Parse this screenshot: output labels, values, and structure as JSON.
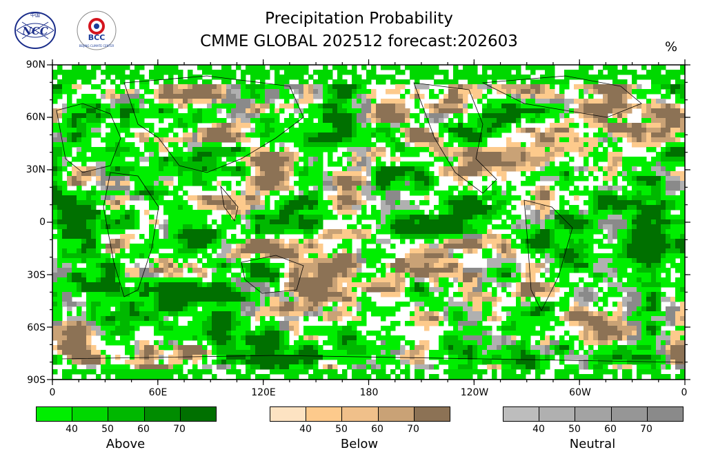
{
  "title": "Precipitation Probability",
  "subtitle": "CMME GLOBAL 202512 forecast:202603",
  "unit": "%",
  "logos": {
    "left": "NCC",
    "right": "BCC",
    "right_ring": "BEIJING CLIMATE CENTER",
    "left_top": "中国"
  },
  "axes": {
    "y_ticks": [
      "90N",
      "60N",
      "30N",
      "0",
      "30S",
      "60S",
      "90S"
    ],
    "x_ticks": [
      "0",
      "60E",
      "120E",
      "180",
      "120W",
      "60W",
      "0"
    ]
  },
  "legends": [
    {
      "name": "Above",
      "labels": [
        "40",
        "50",
        "60",
        "70"
      ],
      "colors": [
        "#00ee00",
        "#00d800",
        "#00b800",
        "#008c00",
        "#007000"
      ]
    },
    {
      "name": "Below",
      "labels": [
        "40",
        "50",
        "60",
        "70"
      ],
      "colors": [
        "#fde3c2",
        "#fdca8c",
        "#f0c08a",
        "#c9a276",
        "#8c7255"
      ]
    },
    {
      "name": "Neutral",
      "labels": [
        "40",
        "50",
        "60",
        "70"
      ],
      "colors": [
        "#bdbdbd",
        "#b0b0b0",
        "#a3a3a3",
        "#969696",
        "#8a8a8a"
      ]
    }
  ],
  "colors": {
    "above": "#00dd00",
    "above_dark": "#007a00",
    "below": "#fdca8c",
    "below_dark": "#8c7255",
    "neutral": "#a8a8a8",
    "coast": "#000000"
  }
}
